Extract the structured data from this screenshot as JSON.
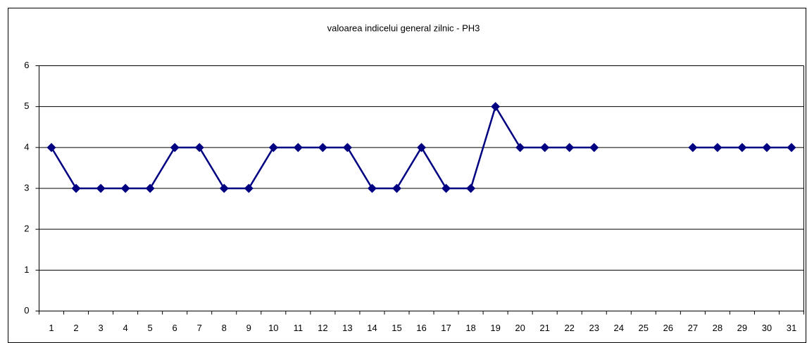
{
  "chart_data": {
    "type": "line",
    "title": "valoarea indicelui general zilnic - PH3",
    "categories": [
      "1",
      "2",
      "3",
      "4",
      "5",
      "6",
      "7",
      "8",
      "9",
      "10",
      "11",
      "12",
      "13",
      "14",
      "15",
      "16",
      "17",
      "18",
      "19",
      "20",
      "21",
      "22",
      "23",
      "24",
      "25",
      "26",
      "27",
      "28",
      "29",
      "30",
      "31"
    ],
    "series": [
      {
        "name": "PH3",
        "color": "#000080",
        "values": [
          4,
          3,
          3,
          3,
          3,
          4,
          4,
          3,
          3,
          4,
          4,
          4,
          4,
          3,
          3,
          4,
          3,
          3,
          5,
          4,
          4,
          4,
          4,
          null,
          null,
          null,
          4,
          4,
          4,
          4,
          4
        ]
      }
    ],
    "ylim": [
      0,
      6
    ],
    "yticks": [
      0,
      1,
      2,
      3,
      4,
      5,
      6
    ],
    "grid": true
  }
}
